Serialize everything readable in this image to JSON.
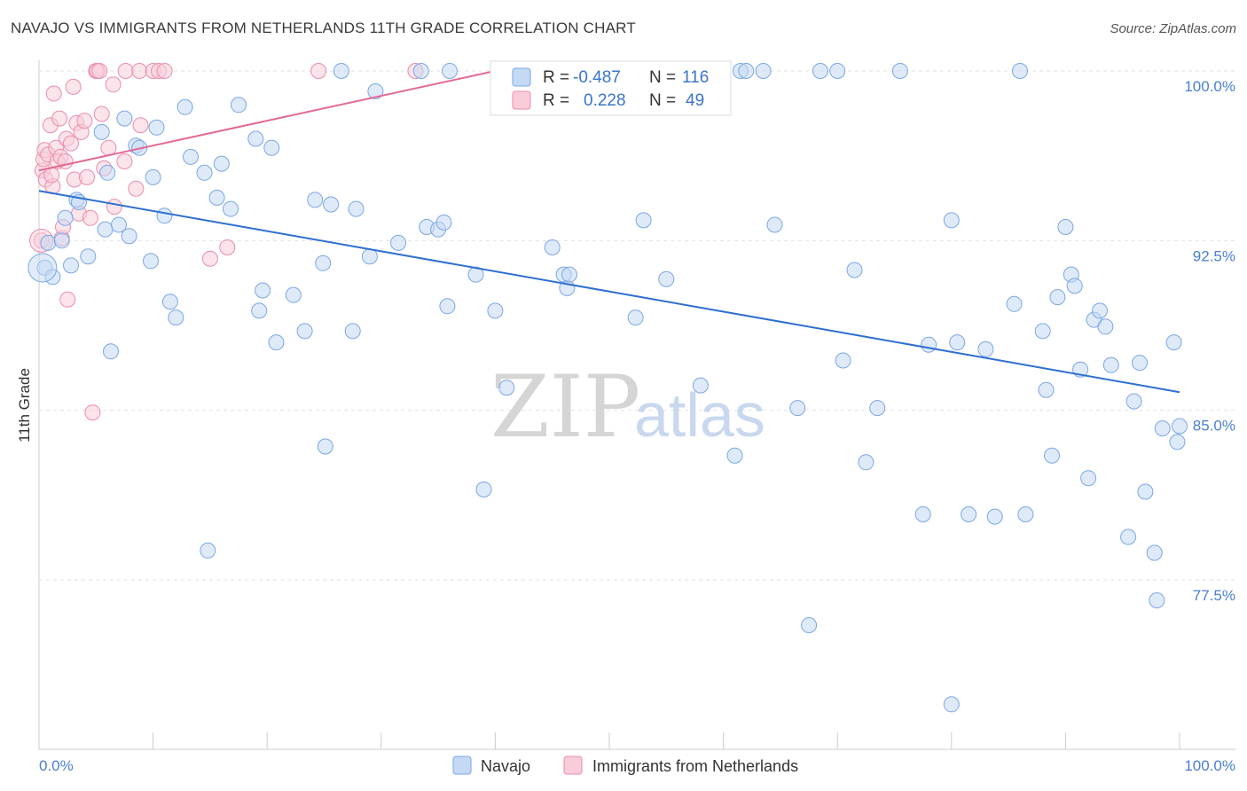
{
  "title": "NAVAJO VS IMMIGRANTS FROM NETHERLANDS 11TH GRADE CORRELATION CHART",
  "source": "Source: ZipAtlas.com",
  "watermark": {
    "zip": "ZIP",
    "atlas": "atlas"
  },
  "chart_data": {
    "type": "scatter",
    "xlabel": "",
    "ylabel": "11th Grade",
    "xlim": [
      0,
      100
    ],
    "ylim": [
      70.5,
      100.5
    ],
    "x_tick_labels": [
      "0.0%",
      "100.0%"
    ],
    "y_tick_labels": [
      "77.5%",
      "85.0%",
      "92.5%",
      "100.0%"
    ],
    "y_ticks": [
      77.5,
      85.0,
      92.5,
      100.0
    ],
    "legend": [
      {
        "name": "Navajo",
        "r_label": "R =",
        "r": "-0.487",
        "n_label": "N =",
        "n": "116",
        "color": "#7aa7e6",
        "fill": "#c5d9f4"
      },
      {
        "name": "Immigrants from Netherlands",
        "r_label": "R =",
        "r": "0.228",
        "n_label": "N =",
        "n": "49",
        "color": "#ec8cab",
        "fill": "#f8cdd9"
      }
    ],
    "series": [
      {
        "name": "Navajo",
        "trendline": {
          "x": [
            0,
            100
          ],
          "y": [
            94.7,
            85.8
          ]
        },
        "points": [
          [
            0.5,
            91.3
          ],
          [
            0.8,
            92.4
          ],
          [
            1.2,
            90.9
          ],
          [
            2.0,
            92.5
          ],
          [
            2.3,
            93.5
          ],
          [
            2.8,
            91.4
          ],
          [
            3.3,
            94.3
          ],
          [
            3.5,
            94.2
          ],
          [
            4.3,
            91.8
          ],
          [
            5.5,
            97.3
          ],
          [
            5.8,
            93.0
          ],
          [
            6.0,
            95.5
          ],
          [
            6.3,
            87.6
          ],
          [
            7.0,
            93.2
          ],
          [
            7.5,
            97.9
          ],
          [
            7.9,
            92.7
          ],
          [
            8.5,
            96.7
          ],
          [
            8.8,
            96.6
          ],
          [
            9.8,
            91.6
          ],
          [
            10.0,
            95.3
          ],
          [
            10.3,
            97.5
          ],
          [
            11.0,
            93.6
          ],
          [
            11.5,
            89.8
          ],
          [
            12.0,
            89.1
          ],
          [
            12.8,
            98.4
          ],
          [
            13.3,
            96.2
          ],
          [
            14.5,
            95.5
          ],
          [
            14.8,
            78.8
          ],
          [
            15.6,
            94.4
          ],
          [
            16.0,
            95.9
          ],
          [
            16.8,
            93.9
          ],
          [
            17.5,
            98.5
          ],
          [
            19.0,
            97.0
          ],
          [
            19.3,
            89.4
          ],
          [
            19.6,
            90.3
          ],
          [
            20.4,
            96.6
          ],
          [
            20.8,
            88.0
          ],
          [
            22.3,
            90.1
          ],
          [
            23.3,
            88.5
          ],
          [
            24.2,
            94.3
          ],
          [
            24.9,
            91.5
          ],
          [
            25.1,
            83.4
          ],
          [
            25.6,
            94.1
          ],
          [
            26.5,
            100.0
          ],
          [
            27.5,
            88.5
          ],
          [
            27.8,
            93.9
          ],
          [
            29.0,
            91.8
          ],
          [
            29.5,
            99.1
          ],
          [
            31.5,
            92.4
          ],
          [
            33.5,
            100.0
          ],
          [
            34.0,
            93.1
          ],
          [
            35.0,
            93.0
          ],
          [
            35.5,
            93.3
          ],
          [
            35.8,
            89.6
          ],
          [
            36.0,
            100.0
          ],
          [
            38.3,
            91.0
          ],
          [
            39.0,
            81.5
          ],
          [
            40.0,
            89.4
          ],
          [
            41.0,
            86.0
          ],
          [
            45.0,
            92.2
          ],
          [
            46.0,
            91.0
          ],
          [
            46.3,
            90.4
          ],
          [
            50.0,
            100.0
          ],
          [
            52.3,
            89.1
          ],
          [
            53.0,
            93.4
          ],
          [
            55.0,
            90.8
          ],
          [
            58.0,
            86.1
          ],
          [
            61.0,
            83.0
          ],
          [
            61.5,
            100.0
          ],
          [
            62.0,
            100.0
          ],
          [
            63.5,
            100.0
          ],
          [
            64.5,
            93.2
          ],
          [
            66.5,
            85.1
          ],
          [
            67.5,
            75.5
          ],
          [
            68.5,
            100.0
          ],
          [
            70.0,
            100.0
          ],
          [
            70.5,
            87.2
          ],
          [
            71.5,
            91.2
          ],
          [
            72.5,
            82.7
          ],
          [
            73.5,
            85.1
          ],
          [
            75.5,
            100.0
          ],
          [
            77.5,
            80.4
          ],
          [
            78.0,
            87.9
          ],
          [
            80.0,
            72.0
          ],
          [
            80.0,
            93.4
          ],
          [
            80.5,
            88.0
          ],
          [
            81.5,
            80.4
          ],
          [
            83.0,
            87.7
          ],
          [
            83.8,
            80.3
          ],
          [
            85.5,
            89.7
          ],
          [
            86.0,
            100.0
          ],
          [
            86.5,
            80.4
          ],
          [
            88.0,
            88.5
          ],
          [
            88.3,
            85.9
          ],
          [
            88.8,
            83.0
          ],
          [
            89.3,
            90.0
          ],
          [
            90.0,
            93.1
          ],
          [
            90.5,
            91.0
          ],
          [
            90.8,
            90.5
          ],
          [
            91.3,
            86.8
          ],
          [
            92.0,
            82.0
          ],
          [
            92.5,
            89.0
          ],
          [
            93.0,
            89.4
          ],
          [
            93.5,
            88.7
          ],
          [
            94.0,
            87.0
          ],
          [
            95.5,
            79.4
          ],
          [
            96.0,
            85.4
          ],
          [
            96.5,
            87.1
          ],
          [
            97.0,
            81.4
          ],
          [
            97.8,
            78.7
          ],
          [
            98.0,
            76.6
          ],
          [
            98.5,
            84.2
          ],
          [
            99.5,
            88.0
          ],
          [
            99.8,
            83.6
          ],
          [
            100.0,
            84.3
          ],
          [
            46.5,
            91.0
          ]
        ]
      },
      {
        "name": "Immigrants from Netherlands",
        "trendline": {
          "x": [
            0,
            40
          ],
          "y": [
            95.6,
            100.0
          ]
        },
        "points": [
          [
            0.2,
            92.5
          ],
          [
            0.3,
            95.6
          ],
          [
            0.4,
            96.1
          ],
          [
            0.5,
            96.5
          ],
          [
            0.6,
            95.2
          ],
          [
            0.8,
            96.3
          ],
          [
            1.0,
            97.6
          ],
          [
            1.2,
            94.9
          ],
          [
            1.3,
            99.0
          ],
          [
            1.5,
            96.6
          ],
          [
            1.6,
            96.0
          ],
          [
            1.8,
            97.9
          ],
          [
            1.9,
            96.2
          ],
          [
            2.0,
            92.6
          ],
          [
            2.1,
            93.1
          ],
          [
            2.3,
            96.0
          ],
          [
            2.4,
            97.0
          ],
          [
            2.5,
            89.9
          ],
          [
            2.8,
            96.8
          ],
          [
            3.0,
            99.3
          ],
          [
            3.1,
            95.2
          ],
          [
            3.3,
            97.7
          ],
          [
            3.5,
            93.7
          ],
          [
            3.7,
            97.3
          ],
          [
            4.0,
            97.8
          ],
          [
            4.2,
            95.3
          ],
          [
            4.5,
            93.5
          ],
          [
            4.7,
            84.9
          ],
          [
            5.0,
            100.0
          ],
          [
            5.1,
            100.0
          ],
          [
            5.3,
            100.0
          ],
          [
            5.5,
            98.1
          ],
          [
            5.7,
            95.7
          ],
          [
            6.1,
            96.6
          ],
          [
            6.5,
            99.4
          ],
          [
            6.6,
            94.0
          ],
          [
            7.5,
            96.0
          ],
          [
            7.6,
            100.0
          ],
          [
            8.5,
            94.8
          ],
          [
            8.9,
            97.6
          ],
          [
            8.8,
            100.0
          ],
          [
            10.0,
            100.0
          ],
          [
            10.5,
            100.0
          ],
          [
            11.0,
            100.0
          ],
          [
            15.0,
            91.7
          ],
          [
            16.5,
            92.2
          ],
          [
            24.5,
            100.0
          ],
          [
            33.0,
            100.0
          ],
          [
            1.1,
            95.4
          ]
        ]
      }
    ]
  }
}
